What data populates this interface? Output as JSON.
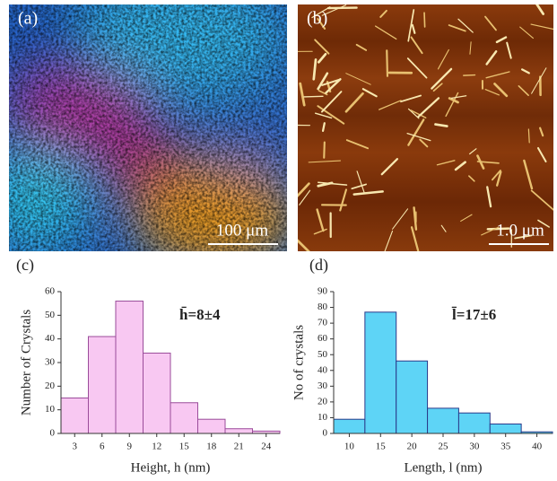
{
  "images": [
    {
      "label": "(a)",
      "scale_bar": "100 μm"
    },
    {
      "label": "(b)",
      "scale_bar": "1.0 μm"
    }
  ],
  "chart_data": [
    {
      "type": "histogram",
      "panel_label": "(c)",
      "annotation": "h̄=8±4",
      "x_label": "Height, h (nm)",
      "y_label": "Number of Crystals",
      "bins": [
        1.5,
        4.5,
        7.5,
        10.5,
        13.5,
        16.5,
        19.5,
        22.5,
        25.5
      ],
      "values": [
        15,
        41,
        56,
        34,
        13,
        6,
        2,
        1
      ],
      "color": "#f8c8f2",
      "edge_color": "#9a4c9a",
      "xlim": [
        1.5,
        25.5
      ],
      "xticks": [
        3,
        6,
        9,
        12,
        15,
        18,
        21,
        24
      ],
      "ylim": [
        0,
        60
      ],
      "yticks": [
        0,
        10,
        20,
        30,
        40,
        50,
        60
      ]
    },
    {
      "type": "histogram",
      "panel_label": "(d)",
      "annotation": "l̄=17±6",
      "x_label": "Length, l (nm)",
      "y_label": "No of crystals",
      "bins": [
        7.5,
        12.5,
        17.5,
        22.5,
        27.5,
        32.5,
        37.5,
        42.5
      ],
      "values": [
        9,
        77,
        46,
        16,
        13,
        6,
        1
      ],
      "color": "#5ed4f6",
      "edge_color": "#2a3a8a",
      "xlim": [
        7.5,
        42.5
      ],
      "xticks": [
        10,
        15,
        20,
        25,
        30,
        35,
        40
      ],
      "ylim": [
        0,
        90
      ],
      "yticks": [
        0,
        10,
        20,
        30,
        40,
        50,
        60,
        70,
        80,
        90
      ]
    }
  ]
}
